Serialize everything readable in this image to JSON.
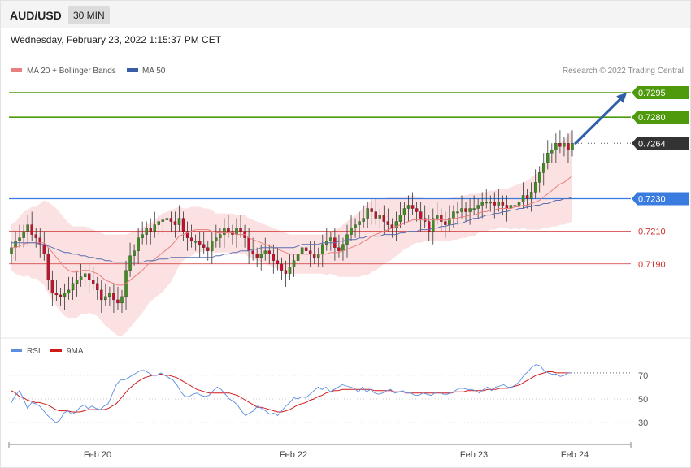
{
  "header": {
    "symbol": "AUD/USD",
    "timeframe": "30 MIN",
    "datetime": "Wednesday, February 23, 2022 1:15:37 PM CET"
  },
  "legend": {
    "ma20": "MA 20 + Bollinger Bands",
    "ma50": "MA 50",
    "copyright": "Research © 2022 Trading Central",
    "rsi": "RSI",
    "rsi_ma": "9MA"
  },
  "colors": {
    "up": "#3e8e1f",
    "down": "#c8102e",
    "bollinger": "#f7c9c9",
    "ma20": "#e88080",
    "ma50": "#5b6fb0",
    "target": "#4f9a0c",
    "pivot": "#3a7be0",
    "support": "#d03030",
    "last": "#333333",
    "arrow": "#2e5fa8",
    "rsi": "#5b8de0",
    "rsi_ma": "#d11a1a"
  },
  "chart_data": [
    {
      "type": "candlestick",
      "title": "AUD/USD",
      "ylim": [
        0.7155,
        0.7302
      ],
      "x_labels": [
        "Feb 20",
        "Feb 22",
        "Feb 23",
        "Feb 24"
      ],
      "levels": [
        {
          "value": 0.7295,
          "label": "0.7295",
          "kind": "target"
        },
        {
          "value": 0.728,
          "label": "0.7280",
          "kind": "target"
        },
        {
          "value": 0.7264,
          "label": "0.7264",
          "kind": "last"
        },
        {
          "value": 0.723,
          "label": "0.7230",
          "kind": "pivot"
        },
        {
          "value": 0.721,
          "label": "0.7210",
          "kind": "support"
        },
        {
          "value": 0.719,
          "label": "0.7190",
          "kind": "support"
        }
      ],
      "close": [
        0.72,
        0.7204,
        0.7206,
        0.721,
        0.7214,
        0.7208,
        0.7206,
        0.7202,
        0.7196,
        0.718,
        0.7172,
        0.7171,
        0.717,
        0.7172,
        0.7174,
        0.7178,
        0.718,
        0.7182,
        0.7184,
        0.718,
        0.7178,
        0.7174,
        0.7168,
        0.717,
        0.7172,
        0.7168,
        0.7166,
        0.717,
        0.7186,
        0.7195,
        0.7198,
        0.7206,
        0.7208,
        0.7212,
        0.721,
        0.7214,
        0.7216,
        0.7217,
        0.7218,
        0.7216,
        0.7214,
        0.7218,
        0.721,
        0.7206,
        0.7204,
        0.7204,
        0.7202,
        0.72,
        0.7198,
        0.7204,
        0.7206,
        0.7208,
        0.7212,
        0.721,
        0.7208,
        0.7212,
        0.721,
        0.7206,
        0.7198,
        0.7196,
        0.7194,
        0.7196,
        0.7198,
        0.7196,
        0.7192,
        0.719,
        0.7186,
        0.7184,
        0.7188,
        0.7192,
        0.7196,
        0.72,
        0.7198,
        0.7196,
        0.7194,
        0.7196,
        0.7202,
        0.7204,
        0.7206,
        0.72,
        0.7198,
        0.7202,
        0.7208,
        0.7212,
        0.7214,
        0.7216,
        0.7218,
        0.7224,
        0.7222,
        0.7218,
        0.722,
        0.7216,
        0.7214,
        0.7212,
        0.7216,
        0.722,
        0.7224,
        0.7226,
        0.7224,
        0.7222,
        0.7218,
        0.7216,
        0.721,
        0.7218,
        0.722,
        0.7216,
        0.7214,
        0.7218,
        0.7222,
        0.7222,
        0.7224,
        0.7222,
        0.7224,
        0.7224,
        0.7226,
        0.7228,
        0.7228,
        0.7228,
        0.7226,
        0.7228,
        0.7226,
        0.7224,
        0.7226,
        0.7226,
        0.7228,
        0.7232,
        0.723,
        0.7234,
        0.724,
        0.7246,
        0.7252,
        0.7258,
        0.726,
        0.7264,
        0.7262,
        0.7264,
        0.726,
        0.7264
      ],
      "ma20": [
        0.72,
        0.72,
        0.7201,
        0.7202,
        0.7203,
        0.7203,
        0.7203,
        0.7203,
        0.7203,
        0.72,
        0.7197,
        0.7194,
        0.7191,
        0.7188,
        0.7186,
        0.7185,
        0.7185,
        0.7186,
        0.7186,
        0.7186,
        0.7185,
        0.7184,
        0.7182,
        0.718,
        0.7179,
        0.7178,
        0.7177,
        0.7177,
        0.7178,
        0.718,
        0.7182,
        0.7184,
        0.7186,
        0.7189,
        0.7191,
        0.7193,
        0.7195,
        0.7197,
        0.7199,
        0.7201,
        0.7204,
        0.7207,
        0.7208,
        0.7209,
        0.721,
        0.7211,
        0.7211,
        0.7211,
        0.7211,
        0.721,
        0.7209,
        0.7209,
        0.7209,
        0.7209,
        0.7209,
        0.7208,
        0.7208,
        0.7208,
        0.7206,
        0.7205,
        0.7204,
        0.7203,
        0.7202,
        0.7201,
        0.72,
        0.7199,
        0.7198,
        0.7197,
        0.7196,
        0.7196,
        0.7196,
        0.7196,
        0.7196,
        0.7196,
        0.7196,
        0.7196,
        0.7196,
        0.7196,
        0.7197,
        0.7197,
        0.7197,
        0.7198,
        0.7199,
        0.72,
        0.7201,
        0.7202,
        0.7204,
        0.7205,
        0.7207,
        0.7208,
        0.7209,
        0.721,
        0.7211,
        0.7212,
        0.7213,
        0.7214,
        0.7215,
        0.7216,
        0.7217,
        0.7217,
        0.7217,
        0.7217,
        0.7217,
        0.7217,
        0.7217,
        0.7217,
        0.7217,
        0.7217,
        0.7218,
        0.7218,
        0.7219,
        0.7219,
        0.722,
        0.722,
        0.7221,
        0.7222,
        0.7222,
        0.7223,
        0.7223,
        0.7224,
        0.7224,
        0.7224,
        0.7224,
        0.7225,
        0.7225,
        0.7226,
        0.7226,
        0.7227,
        0.7228,
        0.7229,
        0.7231,
        0.7233,
        0.7235,
        0.7237,
        0.7239,
        0.724,
        0.7242,
        0.7244
      ],
      "ma50": [
        0.7203,
        0.7203,
        0.7203,
        0.7203,
        0.7203,
        0.7203,
        0.7203,
        0.7202,
        0.7202,
        0.7201,
        0.72,
        0.7199,
        0.7198,
        0.7197,
        0.7197,
        0.7196,
        0.7196,
        0.7195,
        0.7195,
        0.7194,
        0.7194,
        0.7193,
        0.7193,
        0.7192,
        0.7192,
        0.7191,
        0.7191,
        0.7191,
        0.7191,
        0.7191,
        0.7191,
        0.7191,
        0.7191,
        0.7192,
        0.7192,
        0.7192,
        0.7193,
        0.7193,
        0.7193,
        0.7194,
        0.7194,
        0.7194,
        0.7194,
        0.7194,
        0.7194,
        0.7194,
        0.7194,
        0.7194,
        0.7194,
        0.7194,
        0.7195,
        0.7195,
        0.7196,
        0.7196,
        0.7197,
        0.7197,
        0.7198,
        0.7198,
        0.7198,
        0.7199,
        0.7199,
        0.72,
        0.72,
        0.72,
        0.72,
        0.72,
        0.72,
        0.72,
        0.72,
        0.72,
        0.7201,
        0.7202,
        0.7202,
        0.7202,
        0.7202,
        0.7202,
        0.7203,
        0.7203,
        0.7203,
        0.7203,
        0.7204,
        0.7204,
        0.7205,
        0.7205,
        0.7205,
        0.7206,
        0.7206,
        0.7207,
        0.7207,
        0.7207,
        0.7207,
        0.7208,
        0.7208,
        0.7208,
        0.7208,
        0.7209,
        0.7209,
        0.721,
        0.721,
        0.721,
        0.7211,
        0.7211,
        0.7211,
        0.7212,
        0.7212,
        0.7213,
        0.7213,
        0.7214,
        0.7214,
        0.7215,
        0.7215,
        0.7216,
        0.7217,
        0.7218,
        0.7218,
        0.7219,
        0.722,
        0.722,
        0.7221,
        0.7221,
        0.7222,
        0.7222,
        0.7223,
        0.7223,
        0.7224,
        0.7224,
        0.7225,
        0.7225,
        0.7226,
        0.7226,
        0.7227,
        0.7227,
        0.7228,
        0.7229,
        0.7229,
        0.723,
        0.723,
        0.7231,
        0.7231,
        0.7231
      ],
      "bb_width": [
        0.0014,
        0.0016,
        0.0018,
        0.002,
        0.002,
        0.0022,
        0.0022,
        0.0024,
        0.0026,
        0.0028,
        0.0029,
        0.003,
        0.003,
        0.003,
        0.0029,
        0.0028,
        0.0028,
        0.0027,
        0.0027,
        0.0026,
        0.0026,
        0.0026,
        0.0027,
        0.0028,
        0.0029,
        0.003,
        0.0031,
        0.0031,
        0.003,
        0.0029,
        0.0028,
        0.0027,
        0.0026,
        0.0025,
        0.0024,
        0.0024,
        0.0024,
        0.0024,
        0.0023,
        0.0022,
        0.002,
        0.0018,
        0.0016,
        0.0015,
        0.0015,
        0.0014,
        0.0014,
        0.0013,
        0.0013,
        0.0013,
        0.0012,
        0.0012,
        0.0012,
        0.0012,
        0.0012,
        0.0012,
        0.0012,
        0.0012,
        0.0012,
        0.0012,
        0.0012,
        0.0012,
        0.0012,
        0.0012,
        0.0012,
        0.0012,
        0.0012,
        0.0012,
        0.0012,
        0.0012,
        0.0012,
        0.0012,
        0.0012,
        0.0012,
        0.0012,
        0.0012,
        0.0012,
        0.0013,
        0.0013,
        0.0014,
        0.0015,
        0.0016,
        0.0017,
        0.0018,
        0.0019,
        0.002,
        0.0021,
        0.0022,
        0.0022,
        0.0022,
        0.0021,
        0.002,
        0.002,
        0.0019,
        0.0018,
        0.0017,
        0.0016,
        0.0016,
        0.0015,
        0.0014,
        0.0014,
        0.0013,
        0.0013,
        0.0013,
        0.0013,
        0.0013,
        0.0013,
        0.0013,
        0.0013,
        0.0013,
        0.0013,
        0.0013,
        0.0013,
        0.0013,
        0.0012,
        0.0012,
        0.0012,
        0.0012,
        0.0012,
        0.0012,
        0.0012,
        0.0012,
        0.0013,
        0.0013,
        0.0014,
        0.0014,
        0.0015,
        0.0016,
        0.0017,
        0.0018,
        0.0019,
        0.0021,
        0.0022,
        0.0024,
        0.0025,
        0.0026,
        0.0027,
        0.0028,
        0.0028,
        0.0028
      ],
      "projection": [
        0.7264,
        0.7295
      ]
    },
    {
      "type": "line",
      "title": "RSI",
      "ylim": [
        15,
        85
      ],
      "y_ticks": [
        30,
        50,
        70
      ],
      "series": [
        {
          "name": "RSI",
          "values": [
            47,
            53,
            57,
            50,
            42,
            47,
            46,
            44,
            40,
            36,
            33,
            30,
            32,
            38,
            40,
            37,
            39,
            43,
            45,
            42,
            44,
            42,
            41,
            44,
            46,
            54,
            62,
            66,
            66,
            68,
            70,
            72,
            74,
            74,
            72,
            70,
            70,
            72,
            70,
            68,
            66,
            62,
            56,
            52,
            52,
            54,
            55,
            53,
            52,
            53,
            57,
            60,
            58,
            54,
            50,
            48,
            45,
            40,
            36,
            38,
            40,
            44,
            42,
            40,
            37,
            38,
            36,
            40,
            44,
            47,
            51,
            50,
            52,
            51,
            54,
            57,
            60,
            58,
            60,
            56,
            58,
            60,
            62,
            61,
            60,
            59,
            56,
            60,
            56,
            58,
            55,
            54,
            55,
            57,
            58,
            55,
            56,
            57,
            55,
            55,
            53,
            53,
            55,
            54,
            53,
            55,
            56,
            54,
            54,
            55,
            57,
            59,
            59,
            58,
            58,
            57,
            55,
            58,
            60,
            57,
            60,
            61,
            62,
            60,
            60,
            62,
            65,
            70,
            73,
            77,
            79,
            78,
            74,
            72,
            71,
            71,
            69,
            70,
            72,
            72
          ]
        },
        {
          "name": "9MA",
          "values": [
            57,
            55,
            52,
            51,
            49,
            48,
            47,
            47,
            46,
            45,
            43,
            41,
            40,
            40,
            40,
            39,
            39,
            39,
            40,
            41,
            41,
            41,
            41,
            41,
            42,
            44,
            46,
            50,
            54,
            58,
            61,
            64,
            66,
            68,
            69,
            70,
            70,
            71,
            70,
            70,
            69,
            68,
            66,
            64,
            62,
            60,
            58,
            57,
            56,
            55,
            55,
            55,
            55,
            55,
            55,
            54,
            53,
            51,
            49,
            47,
            45,
            43,
            43,
            42,
            41,
            40,
            39,
            39,
            40,
            41,
            43,
            45,
            46,
            47,
            49,
            50,
            52,
            53,
            55,
            56,
            57,
            57,
            58,
            58,
            58,
            58,
            58,
            58,
            58,
            58,
            57,
            57,
            57,
            57,
            57,
            56,
            56,
            56,
            55,
            55,
            55,
            55,
            55,
            55,
            55,
            55,
            55,
            55,
            55,
            55,
            56,
            56,
            56,
            57,
            57,
            57,
            57,
            57,
            58,
            58,
            58,
            59,
            59,
            59,
            60,
            61,
            62,
            64,
            66,
            68,
            70,
            71,
            72,
            73,
            73,
            72,
            72,
            72,
            72,
            72
          ]
        }
      ]
    }
  ]
}
